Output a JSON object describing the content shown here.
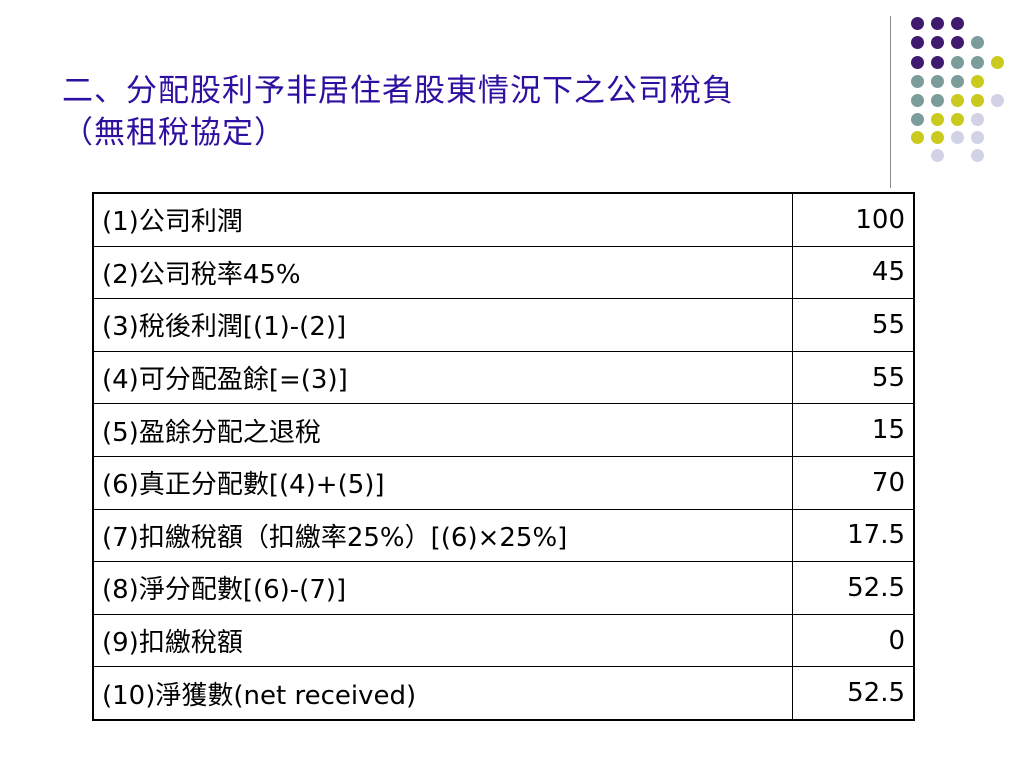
{
  "title": {
    "line1": "二、分配股利予非居住者股東情況下之公司稅負",
    "line2": "（無租稅協定）"
  },
  "colors": {
    "title": "#2e10a0",
    "dot_purple": "#3f1a6e",
    "dot_teal": "#7a9c9a",
    "dot_yellow": "#c9c91e",
    "dot_lavender": "#d2d2e6"
  },
  "rows": [
    {
      "label": "(1)公司利潤",
      "value": "100"
    },
    {
      "label": "(2)公司稅率45%",
      "value": "45"
    },
    {
      "label": "(3)稅後利潤[(1)-(2)]",
      "value": "55"
    },
    {
      "label": "(4)可分配盈餘[=(3)]",
      "value": "55"
    },
    {
      "label": "(5)盈餘分配之退稅",
      "value": "15"
    },
    {
      "label": "(6)真正分配數[(4)+(5)]",
      "value": "70"
    },
    {
      "label": "(7)扣繳稅額（扣繳率25%）[(6)×25%]",
      "value": "17.5"
    },
    {
      "label": "(8)淨分配數[(6)-(7)]",
      "value": "52.5"
    },
    {
      "label": "(9)扣繳稅額",
      "value": "0"
    },
    {
      "label": "(10)淨獲數(net received)",
      "value": "52.5"
    }
  ]
}
